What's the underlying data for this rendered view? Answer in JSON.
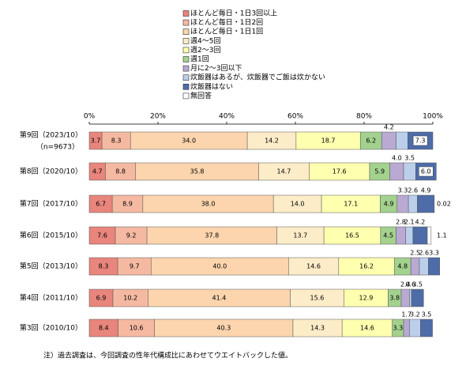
{
  "chart_data": {
    "type": "stacked-barh",
    "categories": [
      "第9回（2023/10）",
      "第8回（2020/10）",
      "第7回（2017/10）",
      "第6回（2015/10）",
      "第5回（2013/10）",
      "第4回（2011/10）",
      "第3回（2010/10）"
    ],
    "sample_size_label": "（n=9673）",
    "xlim": [
      0,
      100
    ],
    "xticks": [
      {
        "value": 0,
        "label": "0%"
      },
      {
        "value": 20,
        "label": "20%"
      },
      {
        "value": 40,
        "label": "40%"
      },
      {
        "value": 60,
        "label": "60%"
      },
      {
        "value": 80,
        "label": "80%"
      },
      {
        "value": 100,
        "label": "100%"
      }
    ],
    "legend_position": "top",
    "series": [
      {
        "name": "ほとんど毎日・1日3回以上",
        "color": "#e8857c",
        "values": [
          3.7,
          4.7,
          6.7,
          7.6,
          8.3,
          6.9,
          8.4
        ],
        "value_labels": [
          "3.7",
          "4.7",
          "6.7",
          "7.6",
          "8.3",
          "6.9",
          "8.4"
        ]
      },
      {
        "name": "ほとんど毎日・1日2回",
        "color": "#f5b9a2",
        "values": [
          8.3,
          8.8,
          8.9,
          9.2,
          9.7,
          10.2,
          10.6
        ],
        "value_labels": [
          "8.3",
          "8.8",
          "8.9",
          "9.2",
          "9.7",
          "10.2",
          "10.6"
        ]
      },
      {
        "name": "ほとんど毎日・1日1回",
        "color": "#fcd5ae",
        "values": [
          34.0,
          35.8,
          38.0,
          37.8,
          40.0,
          41.4,
          40.3
        ],
        "value_labels": [
          "34.0",
          "35.8",
          "38.0",
          "37.8",
          "40.0",
          "41.4",
          "40.3"
        ]
      },
      {
        "name": "週4～5回",
        "color": "#fdecc8",
        "values": [
          14.2,
          14.7,
          14.0,
          13.7,
          14.6,
          15.6,
          14.3
        ],
        "value_labels": [
          "14.2",
          "14.7",
          "14.0",
          "13.7",
          "14.6",
          "15.6",
          "14.3"
        ]
      },
      {
        "name": "週2～3回",
        "color": "#ffffb0",
        "values": [
          18.7,
          17.6,
          17.1,
          16.5,
          16.2,
          12.9,
          14.6
        ],
        "value_labels": [
          "18.7",
          "17.6",
          "17.1",
          "16.5",
          "16.2",
          "12.9",
          "14.6"
        ]
      },
      {
        "name": "週1回",
        "color": "#a3d18e",
        "values": [
          6.2,
          5.9,
          4.9,
          4.5,
          4.8,
          3.8,
          3.3
        ],
        "value_labels": [
          "6.2",
          "5.9",
          "4.9",
          "4.5",
          "4.8",
          "3.8",
          "3.3"
        ]
      },
      {
        "name": "月に2～3回以下",
        "color": "#b9a9d3",
        "values": [
          4.2,
          4.0,
          3.3,
          2.8,
          2.5,
          2.4,
          1.7
        ],
        "value_labels": [
          "4.2",
          "4.0",
          "3.3",
          "2.8",
          "2.5",
          "2.4",
          "1.7"
        ]
      },
      {
        "name": "炊飯器はあるが、炊飯器でご飯は炊かない",
        "color": "#bccfea",
        "values": [
          3.4,
          3.5,
          2.6,
          2.1,
          2.6,
          0.6,
          3.2
        ],
        "value_labels": [
          null,
          "3.5",
          "2.6",
          "2.1",
          "2.6",
          "0.6",
          "3.2"
        ]
      },
      {
        "name": "炊飯器はない",
        "color": "#4d6ca8",
        "values": [
          7.3,
          6.0,
          4.9,
          4.2,
          3.3,
          3.5,
          3.5
        ],
        "value_labels": [
          "7.3",
          "6.0",
          "4.9",
          "4.2",
          "3.3",
          "3.5",
          "3.5"
        ]
      },
      {
        "name": "無回答",
        "color": "#ffffff",
        "values": [
          0,
          0,
          0.02,
          1.1,
          0,
          0,
          0
        ],
        "value_labels": [
          null,
          null,
          "0.02",
          "1.1",
          null,
          null,
          null
        ]
      }
    ],
    "footnote": "注）過去調査は、今回調査の性年代構成比にあわせてウエイトバックした値。"
  }
}
